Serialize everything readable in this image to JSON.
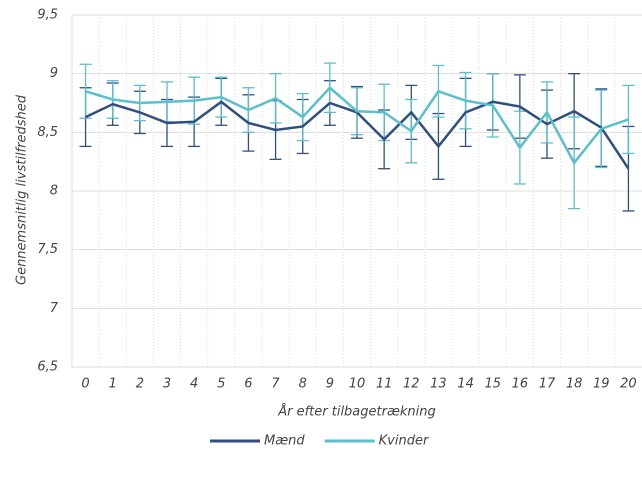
{
  "chart_data": {
    "type": "line",
    "y_label": "Gennemsnitlig livstilfredshed",
    "x_label": "År efter tilbagetrækning",
    "x": [
      0,
      1,
      2,
      3,
      4,
      5,
      6,
      7,
      8,
      9,
      10,
      11,
      12,
      13,
      14,
      15,
      16,
      17,
      18,
      19,
      20
    ],
    "xlim": [
      -0.5,
      20.5
    ],
    "ylim": [
      6.5,
      9.5
    ],
    "yticks": [
      {
        "value": 6.5,
        "label": "6,5"
      },
      7,
      {
        "value": 7.5,
        "label": "7,5"
      },
      8,
      {
        "value": 8.5,
        "label": "8,5"
      },
      9,
      {
        "value": 9.5,
        "label": "9,5"
      }
    ],
    "grid": true,
    "legend": "bottom",
    "series": [
      {
        "name": "Mænd",
        "color": "#2e4f7f",
        "values": [
          8.63,
          8.74,
          8.67,
          8.58,
          8.59,
          8.76,
          8.58,
          8.52,
          8.55,
          8.75,
          8.67,
          8.44,
          8.67,
          8.38,
          8.67,
          8.76,
          8.72,
          8.57,
          8.68,
          8.54,
          8.19
        ],
        "errors": [
          0.25,
          0.18,
          0.18,
          0.2,
          0.21,
          0.2,
          0.24,
          0.25,
          0.23,
          0.19,
          0.22,
          0.25,
          0.23,
          0.28,
          0.29,
          0.24,
          0.27,
          0.29,
          0.32,
          0.33,
          0.36
        ]
      },
      {
        "name": "Kvinder",
        "color": "#5bbfcc",
        "values": [
          8.85,
          8.78,
          8.75,
          8.76,
          8.77,
          8.8,
          8.69,
          8.79,
          8.63,
          8.88,
          8.68,
          8.67,
          8.51,
          8.85,
          8.77,
          8.73,
          8.37,
          8.67,
          8.24,
          8.53,
          8.61
        ],
        "errors": [
          0.23,
          0.16,
          0.15,
          0.17,
          0.2,
          0.17,
          0.19,
          0.21,
          0.2,
          0.21,
          0.2,
          0.24,
          0.27,
          0.22,
          0.24,
          0.27,
          0.31,
          0.26,
          0.39,
          0.33,
          0.29
        ]
      }
    ]
  }
}
